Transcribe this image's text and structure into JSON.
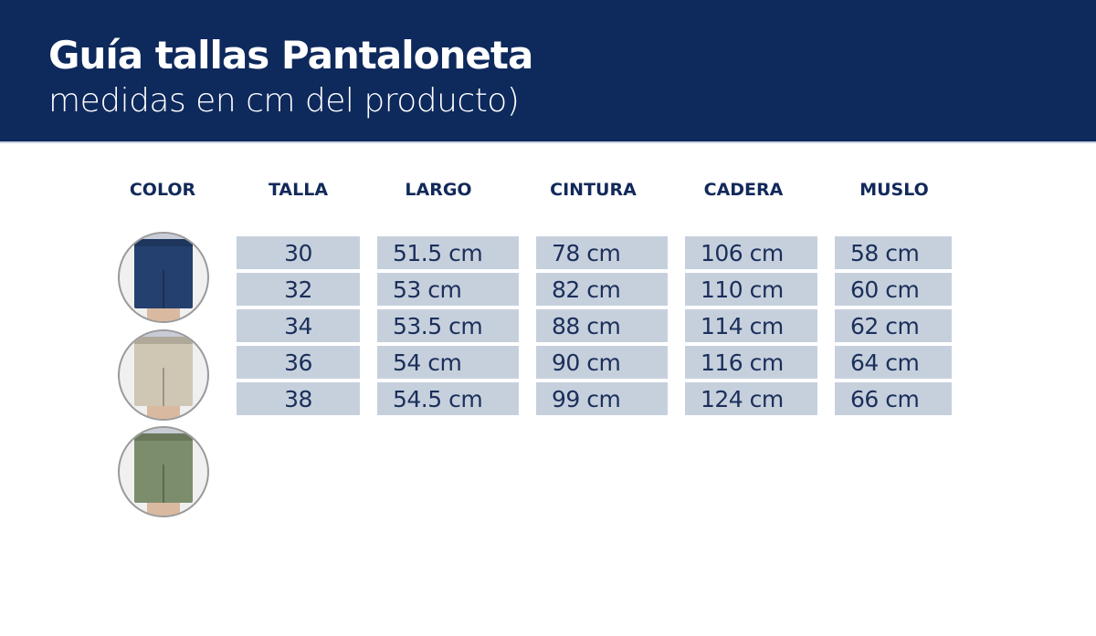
{
  "header": {
    "title": "Guía tallas Pantaloneta",
    "subtitle": "medidas en cm del producto)"
  },
  "colors": {
    "banner": "#0e295c",
    "cell": "#c6d0dd",
    "text": "#1b2f5a"
  },
  "table": {
    "columns": [
      "COLOR",
      "TALLA",
      "LARGO",
      "CINTURA",
      "CADERA",
      "MUSLO"
    ],
    "swatches": [
      {
        "color_name": "navy",
        "hex": "#24406e"
      },
      {
        "color_name": "beige",
        "hex": "#cfc6b4"
      },
      {
        "color_name": "olive",
        "hex": "#7c8d6c"
      }
    ],
    "rows": [
      [
        "30",
        "51.5 cm",
        "78 cm",
        "106 cm",
        "58 cm"
      ],
      [
        "32",
        "53 cm",
        "82 cm",
        "110 cm",
        "60 cm"
      ],
      [
        "34",
        "53.5 cm",
        "88 cm",
        "114 cm",
        "62 cm"
      ],
      [
        "36",
        "54 cm",
        "90 cm",
        "116 cm",
        "64 cm"
      ],
      [
        "38",
        "54.5 cm",
        "99 cm",
        "124 cm",
        "66 cm"
      ]
    ]
  }
}
